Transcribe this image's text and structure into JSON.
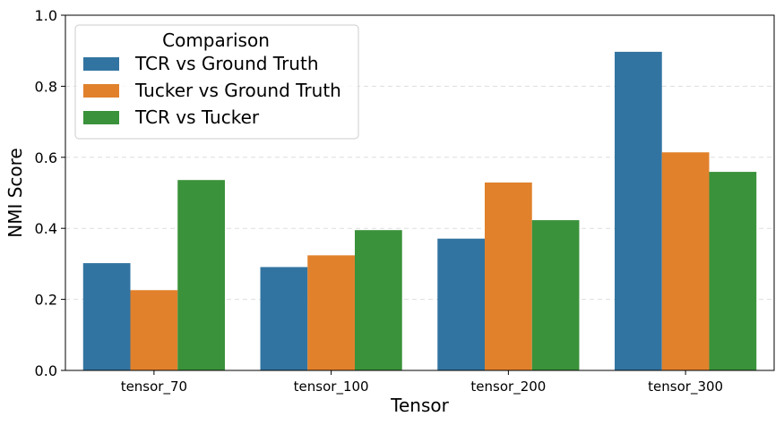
{
  "chart_data": {
    "type": "bar",
    "categories": [
      "tensor_70",
      "tensor_100",
      "tensor_200",
      "tensor_300"
    ],
    "series": [
      {
        "name": "TCR vs Ground Truth",
        "color": "#3274a1",
        "values": [
          0.302,
          0.291,
          0.371,
          0.897
        ]
      },
      {
        "name": "Tucker vs Ground Truth",
        "color": "#e1812c",
        "values": [
          0.226,
          0.324,
          0.529,
          0.614
        ]
      },
      {
        "name": "TCR vs Tucker",
        "color": "#3a923a",
        "values": [
          0.536,
          0.395,
          0.423,
          0.559
        ]
      }
    ],
    "title": "",
    "xlabel": "Tensor",
    "ylabel": "NMI Score",
    "ylim": [
      0,
      1.0
    ],
    "yticks": [
      0.0,
      0.2,
      0.4,
      0.6,
      0.8,
      1.0
    ],
    "ytick_labels": [
      "0.0",
      "0.2",
      "0.4",
      "0.6",
      "0.8",
      "1.0"
    ],
    "grid": "y-dashed",
    "legend": {
      "title": "Comparison",
      "placement": "top-left"
    }
  }
}
